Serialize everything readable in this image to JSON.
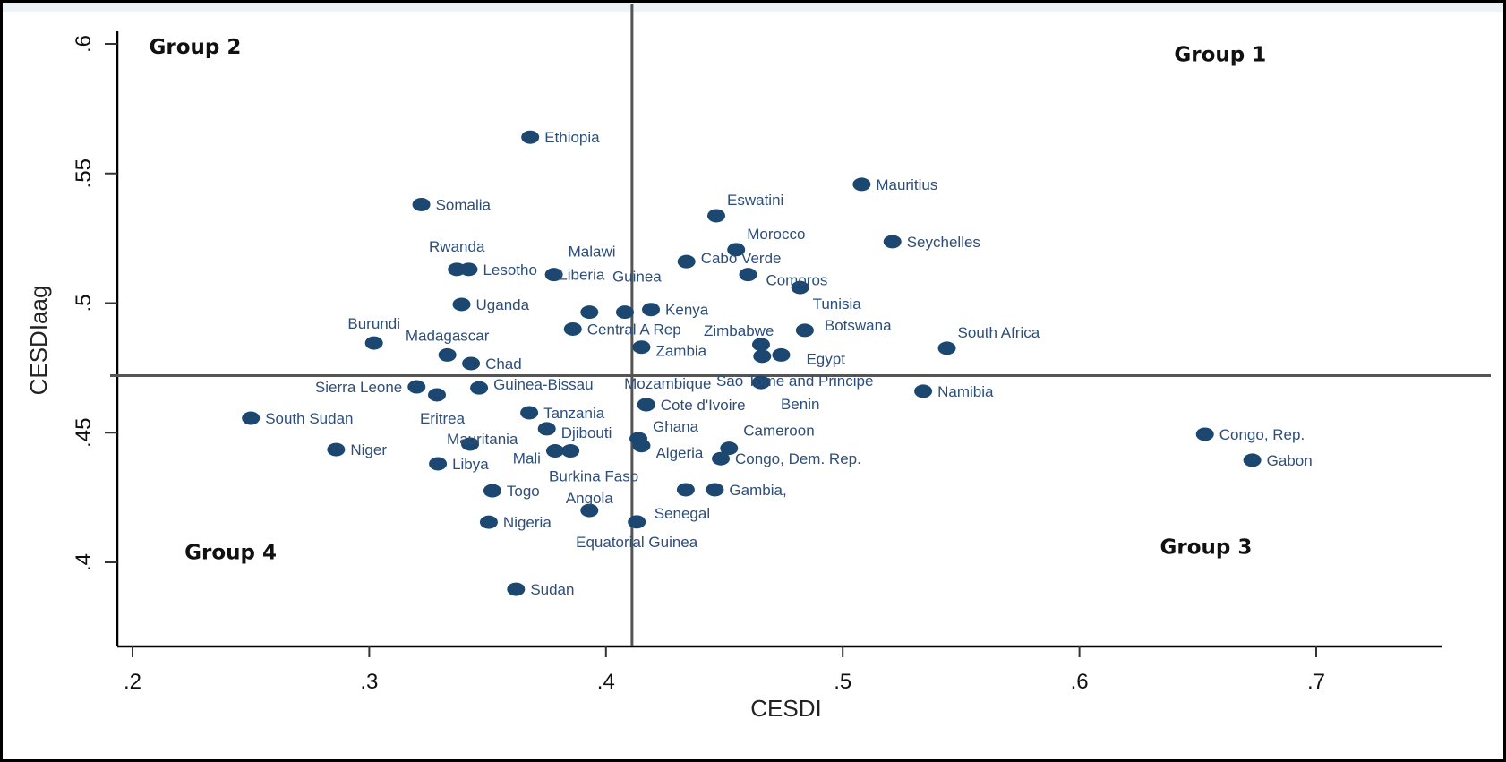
{
  "chart_data": {
    "type": "scatter",
    "title": "",
    "xlabel": "CESDI",
    "ylabel": "CESDIaag",
    "xlim": [
      0.19,
      0.71
    ],
    "ylim": [
      0.385,
      0.6
    ],
    "x_ticks": [
      {
        "v": 0.2,
        "label": ".2"
      },
      {
        "v": 0.3,
        "label": ".3"
      },
      {
        "v": 0.4,
        "label": ".4"
      },
      {
        "v": 0.5,
        "label": ".5"
      },
      {
        "v": 0.6,
        "label": ".6"
      },
      {
        "v": 0.7,
        "label": ".7"
      }
    ],
    "y_ticks": [
      {
        "v": 0.4,
        "label": ".4"
      },
      {
        "v": 0.45,
        "label": ".45"
      },
      {
        "v": 0.5,
        "label": ".5"
      },
      {
        "v": 0.55,
        "label": ".55"
      },
      {
        "v": 0.6,
        "label": ".6"
      }
    ],
    "grid": false,
    "reference_lines": {
      "x": 0.411,
      "y": 0.472
    },
    "marker_color": "#1c4770",
    "label_color": "#2e4e7a",
    "group_labels": [
      {
        "text": "Group 1",
        "x": 0.64,
        "y": 0.596
      },
      {
        "text": "Group 2",
        "x": 0.207,
        "y": 0.599
      },
      {
        "text": "Group 3",
        "x": 0.634,
        "y": 0.406
      },
      {
        "text": "Group 4",
        "x": 0.222,
        "y": 0.404
      }
    ],
    "points": [
      {
        "name": "Ethiopia",
        "x": 0.368,
        "y": 0.564,
        "pos": "right"
      },
      {
        "name": "Somalia",
        "x": 0.322,
        "y": 0.538,
        "pos": "right"
      },
      {
        "name": "Rwanda",
        "x": 0.337,
        "y": 0.513,
        "pos": "above"
      },
      {
        "name": "Lesotho",
        "x": 0.342,
        "y": 0.513,
        "pos": "right"
      },
      {
        "name": "Malawi",
        "x": 0.378,
        "y": 0.511,
        "pos": "upright"
      },
      {
        "name": "Uganda",
        "x": 0.339,
        "y": 0.4995,
        "pos": "right"
      },
      {
        "name": "Liberia",
        "x": 0.393,
        "y": 0.4965,
        "pos": "aboveleft"
      },
      {
        "name": "Guinea",
        "x": 0.408,
        "y": 0.4965,
        "pos": "aboveleft"
      },
      {
        "name": "Kenya",
        "x": 0.419,
        "y": 0.4975,
        "pos": "right"
      },
      {
        "name": "Central A Rep",
        "x": 0.386,
        "y": 0.49,
        "pos": "right"
      },
      {
        "name": "Burundi",
        "x": 0.302,
        "y": 0.4846,
        "pos": "above"
      },
      {
        "name": "Madagascar",
        "x": 0.333,
        "y": 0.48,
        "pos": "above"
      },
      {
        "name": "Chad",
        "x": 0.343,
        "y": 0.4767,
        "pos": "right"
      },
      {
        "name": "Zambia",
        "x": 0.415,
        "y": 0.483,
        "pos": "right"
      },
      {
        "name": "Mauritius",
        "x": 0.508,
        "y": 0.5458,
        "pos": "right"
      },
      {
        "name": "Eswatini",
        "x": 0.4466,
        "y": 0.5337,
        "pos": "upright"
      },
      {
        "name": "Morocco",
        "x": 0.455,
        "y": 0.5206,
        "pos": "upright"
      },
      {
        "name": "Seychelles",
        "x": 0.521,
        "y": 0.5237,
        "pos": "right"
      },
      {
        "name": "Cabo Verde",
        "x": 0.434,
        "y": 0.516,
        "pos": "right"
      },
      {
        "name": "Comoros",
        "x": 0.46,
        "y": 0.511,
        "pos": "right"
      },
      {
        "name": "Tunisia",
        "x": 0.482,
        "y": 0.506,
        "pos": "downright"
      },
      {
        "name": "Botswana",
        "x": 0.484,
        "y": 0.4895,
        "pos": "upright"
      },
      {
        "name": "Zimbabwe",
        "x": 0.4655,
        "y": 0.484,
        "pos": "aboveleft"
      },
      {
        "name": "Egypt",
        "x": 0.474,
        "y": 0.48,
        "pos": "right"
      },
      {
        "name": "",
        "x": 0.466,
        "y": 0.4795,
        "pos": "none"
      },
      {
        "name": "South Africa",
        "x": 0.544,
        "y": 0.4826,
        "pos": "upright"
      },
      {
        "name": "Sao Tome and Principe",
        "x": 0.4655,
        "y": 0.4694,
        "pos": "aboveleft"
      },
      {
        "name": "Benin",
        "x": 0.4655,
        "y": 0.4694,
        "pos": "downright"
      },
      {
        "name": "Namibia",
        "x": 0.534,
        "y": 0.466,
        "pos": "right"
      },
      {
        "name": "Sierra Leone",
        "x": 0.32,
        "y": 0.4677,
        "pos": "left"
      },
      {
        "name": "Eritrea",
        "x": 0.3286,
        "y": 0.4646,
        "pos": "below"
      },
      {
        "name": "Guinea-Bissau",
        "x": 0.3464,
        "y": 0.4673,
        "pos": "upright"
      },
      {
        "name": "South Sudan",
        "x": 0.25,
        "y": 0.4556,
        "pos": "right"
      },
      {
        "name": "Tanzania",
        "x": 0.3676,
        "y": 0.4577,
        "pos": "right"
      },
      {
        "name": "Djibouti",
        "x": 0.375,
        "y": 0.4515,
        "pos": "right"
      },
      {
        "name": "Mauritania",
        "x": 0.3426,
        "y": 0.4456,
        "pos": "aboveleft"
      },
      {
        "name": "Niger",
        "x": 0.286,
        "y": 0.4435,
        "pos": "right"
      },
      {
        "name": "Mali",
        "x": 0.3785,
        "y": 0.443,
        "pos": "left"
      },
      {
        "name": "Burkina Faso",
        "x": 0.385,
        "y": 0.443,
        "pos": "below"
      },
      {
        "name": "Libya",
        "x": 0.329,
        "y": 0.438,
        "pos": "right"
      },
      {
        "name": "Togo",
        "x": 0.352,
        "y": 0.4276,
        "pos": "right"
      },
      {
        "name": "Angola",
        "x": 0.393,
        "y": 0.42,
        "pos": "above"
      },
      {
        "name": "Nigeria",
        "x": 0.3505,
        "y": 0.4155,
        "pos": "right"
      },
      {
        "name": "Sudan",
        "x": 0.362,
        "y": 0.3896,
        "pos": "right"
      },
      {
        "name": "Mozambique",
        "x": 0.417,
        "y": 0.4608,
        "pos": "above"
      },
      {
        "name": "Cote d'Ivoire",
        "x": 0.417,
        "y": 0.4608,
        "pos": "right"
      },
      {
        "name": "Ghana",
        "x": 0.4137,
        "y": 0.4477,
        "pos": "upright"
      },
      {
        "name": "Algeria",
        "x": 0.415,
        "y": 0.445,
        "pos": "right"
      },
      {
        "name": "Cameroon",
        "x": 0.452,
        "y": 0.444,
        "pos": "upright"
      },
      {
        "name": "Congo, Dem. Rep.",
        "x": 0.4485,
        "y": 0.44,
        "pos": "right"
      },
      {
        "name": "Senegal",
        "x": 0.4337,
        "y": 0.428,
        "pos": "below"
      },
      {
        "name": "Gambia,",
        "x": 0.446,
        "y": 0.428,
        "pos": "right"
      },
      {
        "name": "Equatorial Guinea",
        "x": 0.413,
        "y": 0.4156,
        "pos": "below"
      },
      {
        "name": "Congo, Rep.",
        "x": 0.653,
        "y": 0.4494,
        "pos": "right"
      },
      {
        "name": "Gabon",
        "x": 0.673,
        "y": 0.4394,
        "pos": "right"
      }
    ]
  }
}
